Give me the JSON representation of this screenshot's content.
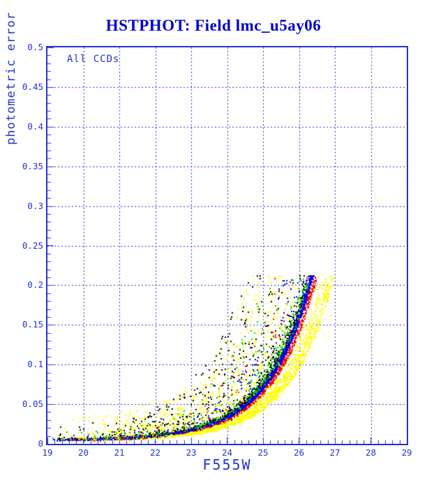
{
  "chart_data": {
    "type": "scatter",
    "title": "HSTPHOT: Field lmc_u5ay06",
    "annotation": "All CCDs",
    "xlabel": "F555W",
    "ylabel": "photometric error",
    "xlim": [
      19,
      29
    ],
    "ylim": [
      0,
      0.5
    ],
    "xtick_values": [
      19,
      20,
      21,
      22,
      23,
      24,
      25,
      26,
      27,
      28,
      29
    ],
    "xtick_labels": [
      "19",
      "20",
      "21",
      "22",
      "23",
      "24",
      "25",
      "26",
      "27",
      "28",
      "29"
    ],
    "ytick_values": [
      0,
      0.05,
      0.1,
      0.15,
      0.2,
      0.25,
      0.3,
      0.35,
      0.4,
      0.45,
      0.5
    ],
    "ytick_labels": [
      "0",
      "0.05",
      "0.1",
      "0.15",
      "0.2",
      "0.25",
      "0.3",
      "0.35",
      "0.4",
      "0.45",
      "0.5"
    ],
    "x_minor_step": 0.2,
    "y_minor_step": 0.01,
    "grid": {
      "x_lines": [
        20,
        21,
        22,
        23,
        24,
        25,
        26,
        27,
        28
      ],
      "y_lines": [
        0.05,
        0.1,
        0.15,
        0.2,
        0.25,
        0.3,
        0.35,
        0.4,
        0.45
      ],
      "style": "dashed",
      "color": "#2233cc"
    },
    "colors": {
      "frame": "#2233cc",
      "title": "#0000cc",
      "axis_text": "#2233cc"
    },
    "point_model": {
      "description": "error vs magnitude ridge: err(m) = base + amp * exp(k*(m - shift - 19)), points removed above err_cap (detection cutoff ~0.213 at F555W ~26.4)",
      "base": 0.005,
      "amp": 0.00042,
      "k": 0.84,
      "err_cap": 0.213,
      "mag_faint_exponent": 0.5,
      "seed": 20240607,
      "series": [
        {
          "name": "series-yellow",
          "color": "#ffff00",
          "n": 2900,
          "mag_min": 19,
          "mag_max": 26.95,
          "mag_shift": 0.6,
          "jitter": 0.22,
          "outlier_frac": 0.5,
          "outlier_max": 6.5
        },
        {
          "name": "series-black",
          "color": "#000000",
          "n": 1300,
          "mag_min": 19,
          "mag_max": 26.4,
          "mag_shift": -0.02,
          "jitter": 0.13,
          "outlier_frac": 0.38,
          "outlier_max": 4.5
        },
        {
          "name": "series-green",
          "color": "#00cc00",
          "n": 1000,
          "mag_min": 19,
          "mag_max": 26.4,
          "mag_shift": -0.03,
          "jitter": 0.12,
          "outlier_frac": 0.2,
          "outlier_max": 3.0
        },
        {
          "name": "series-red",
          "color": "#ff0000",
          "n": 1000,
          "mag_min": 19,
          "mag_max": 26.45,
          "mag_shift": 0.12,
          "jitter": 0.06,
          "outlier_frac": 0.1,
          "outlier_max": 2.5
        },
        {
          "name": "series-blue",
          "color": "#0000ff",
          "n": 3000,
          "mag_min": 19,
          "mag_max": 26.4,
          "mag_shift": 0.0,
          "jitter": 0.055,
          "outlier_frac": 0.06,
          "outlier_max": 2.0
        }
      ],
      "extra_points": [
        {
          "x": 26.86,
          "y": 0.163,
          "color": "#ffff00"
        },
        {
          "x": 27.33,
          "y": 0.149,
          "color": "#ffff00"
        },
        {
          "x": 26.82,
          "y": 0.136,
          "color": "#ffff00"
        }
      ]
    }
  }
}
